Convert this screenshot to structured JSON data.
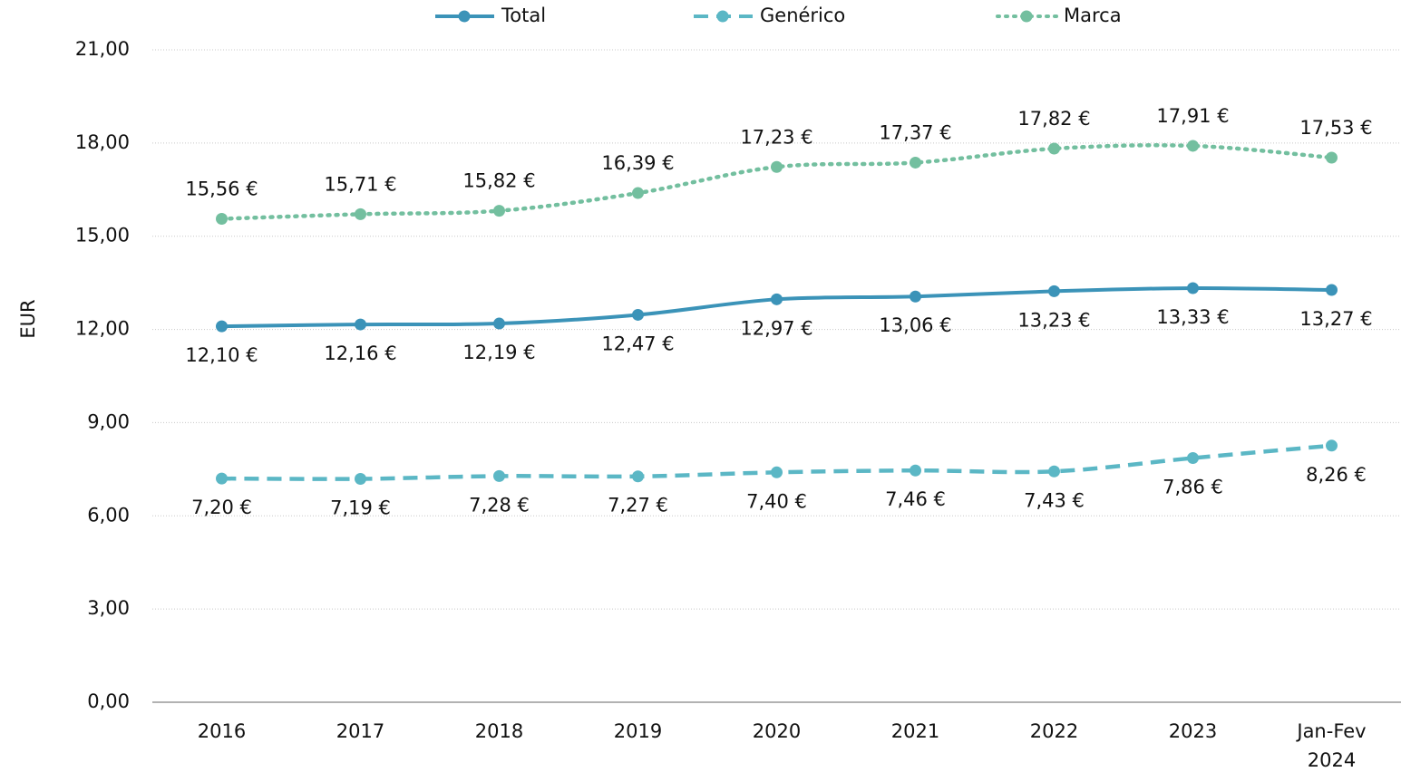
{
  "chart_data": {
    "type": "line",
    "categories": [
      "2016",
      "2017",
      "2018",
      "2019",
      "2020",
      "2021",
      "2022",
      "2023",
      "Jan-Fev 2024"
    ],
    "y_label": "EUR",
    "ylim": [
      0,
      21
    ],
    "yticks": [
      {
        "value": 0,
        "label": "0,00"
      },
      {
        "value": 3,
        "label": "3,00"
      },
      {
        "value": 6,
        "label": "6,00"
      },
      {
        "value": 9,
        "label": "9,00"
      },
      {
        "value": 12,
        "label": "12,00"
      },
      {
        "value": 15,
        "label": "15,00"
      },
      {
        "value": 18,
        "label": "18,00"
      },
      {
        "value": 21,
        "label": "21,00"
      }
    ],
    "grid": true,
    "legend": "top",
    "series": [
      {
        "name": "Total",
        "color": "#3b93b8",
        "style": "solid",
        "values": [
          12.1,
          12.16,
          12.19,
          12.47,
          12.97,
          13.06,
          13.23,
          13.33,
          13.27
        ],
        "value_labels": [
          "12,10 €",
          "12,16 €",
          "12,19 €",
          "12,47 €",
          "12,97 €",
          "13,06 €",
          "13,23 €",
          "13,33 €",
          "13,27 €"
        ]
      },
      {
        "name": "Genérico",
        "color": "#5bb7c5",
        "style": "dashed",
        "values": [
          7.2,
          7.19,
          7.28,
          7.27,
          7.4,
          7.46,
          7.43,
          7.86,
          8.26
        ],
        "value_labels": [
          "7,20 €",
          "7,19 €",
          "7,28 €",
          "7,27 €",
          "7,40 €",
          "7,46 €",
          "7,43 €",
          "7,86 €",
          "8,26 €"
        ]
      },
      {
        "name": "Marca",
        "color": "#73bf9f",
        "style": "dotted",
        "values": [
          15.56,
          15.71,
          15.82,
          16.39,
          17.23,
          17.37,
          17.82,
          17.91,
          17.53
        ],
        "value_labels": [
          "15,56 €",
          "15,71 €",
          "15,82 €",
          "16,39 €",
          "17,23 €",
          "17,37 €",
          "17,82 €",
          "17,91 €",
          "17,53 €"
        ]
      }
    ]
  }
}
